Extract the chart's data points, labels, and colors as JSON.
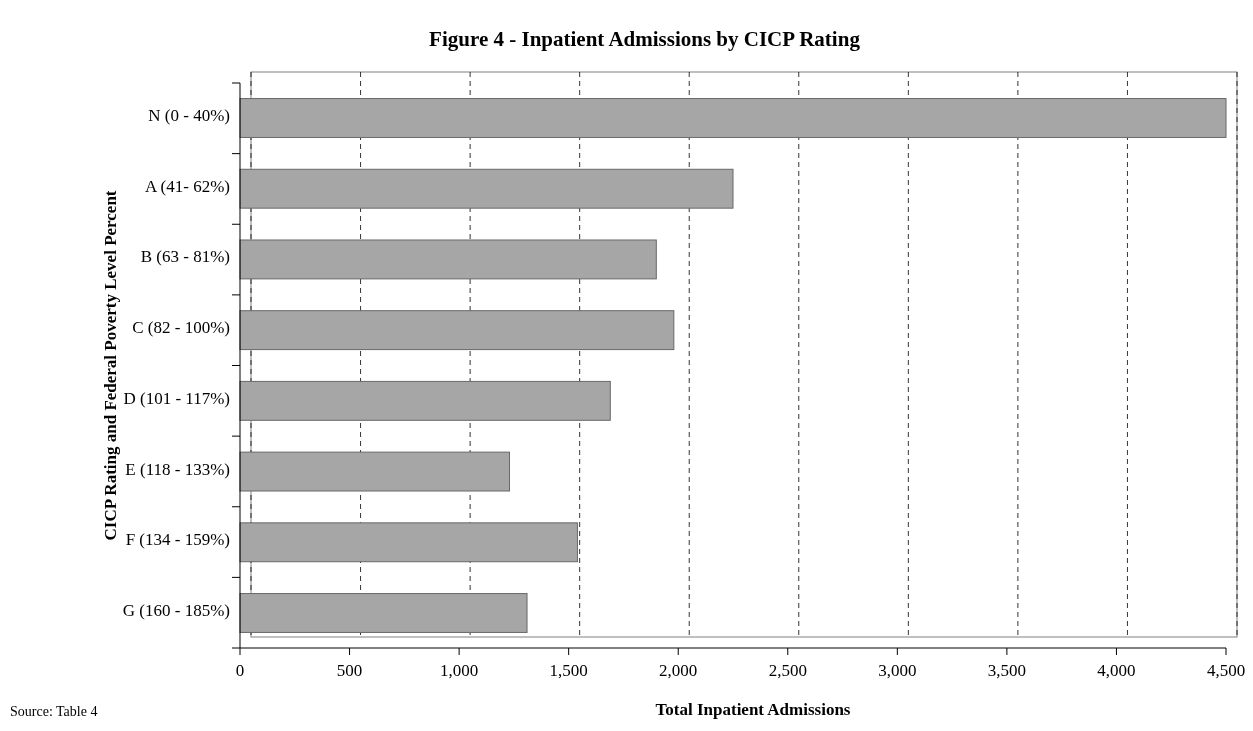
{
  "chart_data": {
    "type": "bar",
    "orientation": "horizontal",
    "title": "Figure 4 - Inpatient Admissions by CICP Rating",
    "xlabel": "Total Inpatient Admissions",
    "ylabel": "CICP Rating and Federal Poverty Level Percent",
    "categories": [
      "N  (0 - 40%)",
      "A  (41- 62%)",
      "B  (63 - 81%)",
      "C  (82 - 100%)",
      "D  (101 - 117%)",
      "E  (118 - 133%)",
      "F  (134 - 159%)",
      "G  (160 - 185%)"
    ],
    "values": [
      4500,
      2250,
      1900,
      1980,
      1690,
      1230,
      1540,
      1310
    ],
    "color": "#a6a6a6",
    "xlim": [
      0,
      4500
    ],
    "xticks": [
      {
        "value": 0,
        "label": "0"
      },
      {
        "value": 500,
        "label": "500"
      },
      {
        "value": 1000,
        "label": "1,000"
      },
      {
        "value": 1500,
        "label": "1,500"
      },
      {
        "value": 2000,
        "label": "2,000"
      },
      {
        "value": 2500,
        "label": "2,500"
      },
      {
        "value": 3000,
        "label": "3,000"
      },
      {
        "value": 3500,
        "label": "3,500"
      },
      {
        "value": 4000,
        "label": "4,000"
      },
      {
        "value": 4500,
        "label": "4,500"
      }
    ],
    "grid": "x",
    "line_style": "dashed",
    "annotations": [
      "Source:  Table 4"
    ]
  }
}
